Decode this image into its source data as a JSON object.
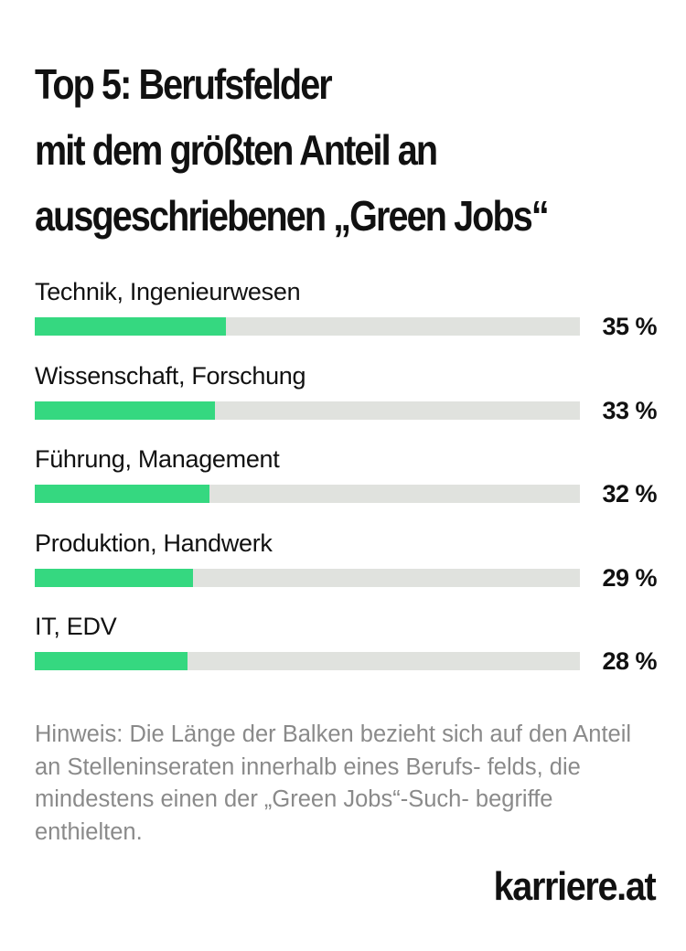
{
  "chart_data": {
    "type": "bar",
    "orientation": "horizontal",
    "title_lines": [
      "Top 5: Berufsfelder",
      "mit dem größten Anteil an",
      "ausgeschriebenen „Green Jobs“"
    ],
    "categories": [
      "Technik, Ingenieurwesen",
      "Wissenschaft, Forschung",
      "Führung, Management",
      "Produktion, Handwerk",
      "IT, EDV"
    ],
    "values": [
      35,
      33,
      32,
      29,
      28
    ],
    "value_labels": [
      "35 %",
      "33 %",
      "32 %",
      "29 %",
      "28 %"
    ],
    "unit": "%",
    "xlim": [
      0,
      100
    ],
    "grid": false,
    "legend": "none",
    "colors": {
      "bar": "#35d880",
      "track": "#e0e2de"
    }
  },
  "note": "Hinweis:  Die Länge der Balken bezieht sich auf den Anteil an Stelleninseraten innerhalb eines Berufs- felds, die mindestens einen der „Green Jobs“-Such- begriffe enthielten.",
  "brand": "karriere.at"
}
